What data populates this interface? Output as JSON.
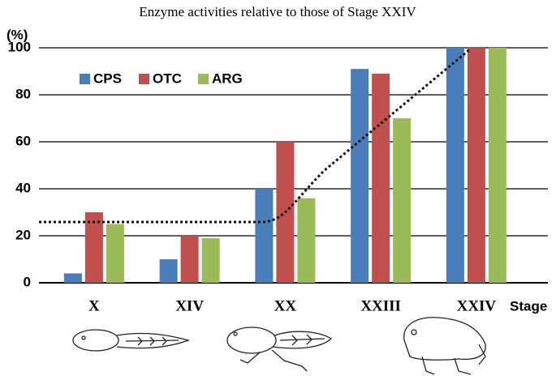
{
  "chart_data": {
    "type": "bar",
    "title": "Enzyme activities relative to those of Stage XXIV",
    "ylabel": "(%)",
    "xlabel": "Stage",
    "categories": [
      "X",
      "XIV",
      "XX",
      "XXIII",
      "XXIV"
    ],
    "series": [
      {
        "name": "CPS",
        "color": "#4a7ebb",
        "values": [
          4,
          10,
          40,
          91,
          100
        ]
      },
      {
        "name": "OTC",
        "color": "#c0504d",
        "values": [
          30,
          20,
          60,
          89,
          100
        ]
      },
      {
        "name": "ARG",
        "color": "#9bbb59",
        "values": [
          25,
          19,
          36,
          70,
          100
        ]
      }
    ],
    "ylim": [
      0,
      100
    ],
    "yticks": [
      0,
      20,
      40,
      60,
      80,
      100
    ],
    "grid": true
  }
}
